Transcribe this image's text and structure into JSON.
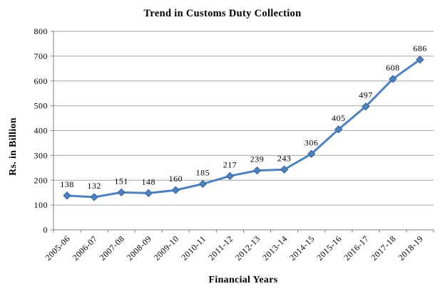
{
  "chart_data": {
    "type": "line",
    "title": "Trend in Customs Duty Collection",
    "xlabel": "Financial Years",
    "ylabel": "Rs. in Billion",
    "categories": [
      "2005-06",
      "2006-07",
      "2007-08",
      "2008-09",
      "2009-10",
      "2010-11",
      "2011-12",
      "2012-13",
      "2013-14",
      "2014-15",
      "2015-16",
      "2016-17",
      "2017-18",
      "2018-19"
    ],
    "values": [
      138,
      132,
      151,
      148,
      160,
      185,
      217,
      239,
      243,
      306,
      405,
      497,
      608,
      686
    ],
    "ylim": [
      0,
      800
    ],
    "ytick_step": 100,
    "grid": "horizontal",
    "legend": "none",
    "data_labels": true,
    "marker": "diamond",
    "x_label_rotation": -45
  },
  "colors": {
    "line": "#4F81BD",
    "marker_fill": "#4F81BD",
    "marker_edge": "#3A679C",
    "gridline": "#A6A6A6",
    "axis": "#808080",
    "text": "#000000",
    "background": "#FFFFFF"
  }
}
